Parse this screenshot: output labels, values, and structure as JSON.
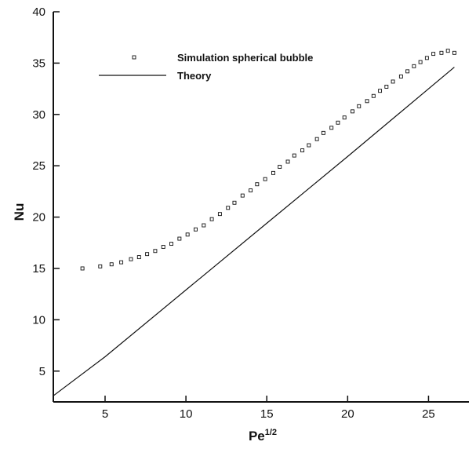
{
  "chart_data": {
    "type": "line",
    "xlabel": "Pe",
    "xlabel_sup": "1/2",
    "ylabel": "Nu",
    "xlim": [
      1.8,
      27.5
    ],
    "ylim": [
      2,
      40
    ],
    "xticks": [
      5,
      10,
      15,
      20,
      25
    ],
    "yticks": [
      5,
      10,
      15,
      20,
      25,
      30,
      35,
      40
    ],
    "grid": false,
    "legend_position": "top-left",
    "series": [
      {
        "name": "Simulation spherical bubble",
        "marker": "square",
        "line": false,
        "x": [
          3.6,
          4.7,
          5.4,
          6.0,
          6.6,
          7.1,
          7.6,
          8.1,
          8.6,
          9.1,
          9.6,
          10.1,
          10.6,
          11.1,
          11.6,
          12.1,
          12.6,
          13.0,
          13.5,
          14.0,
          14.4,
          14.9,
          15.4,
          15.8,
          16.3,
          16.7,
          17.2,
          17.6,
          18.1,
          18.5,
          19.0,
          19.4,
          19.8,
          20.3,
          20.7,
          21.2,
          21.6,
          22.0,
          22.4,
          22.8,
          23.3,
          23.7,
          24.1,
          24.5,
          24.9,
          25.3,
          25.8,
          26.2,
          26.6
        ],
        "y": [
          15.0,
          15.2,
          15.4,
          15.6,
          15.9,
          16.1,
          16.4,
          16.7,
          17.1,
          17.4,
          17.9,
          18.3,
          18.8,
          19.2,
          19.8,
          20.3,
          20.9,
          21.4,
          22.1,
          22.6,
          23.2,
          23.7,
          24.3,
          24.9,
          25.4,
          26.0,
          26.5,
          27.0,
          27.6,
          28.2,
          28.7,
          29.2,
          29.7,
          30.3,
          30.8,
          31.3,
          31.8,
          32.3,
          32.7,
          33.2,
          33.7,
          34.2,
          34.7,
          35.1,
          35.5,
          35.9,
          36.0,
          36.2,
          36.0
        ]
      },
      {
        "name": "Theory",
        "marker": "none",
        "line": true,
        "x": [
          1.8,
          5,
          10,
          15,
          20,
          26.6
        ],
        "y": [
          2.6,
          6.4,
          12.9,
          19.4,
          25.9,
          34.6
        ]
      }
    ]
  }
}
